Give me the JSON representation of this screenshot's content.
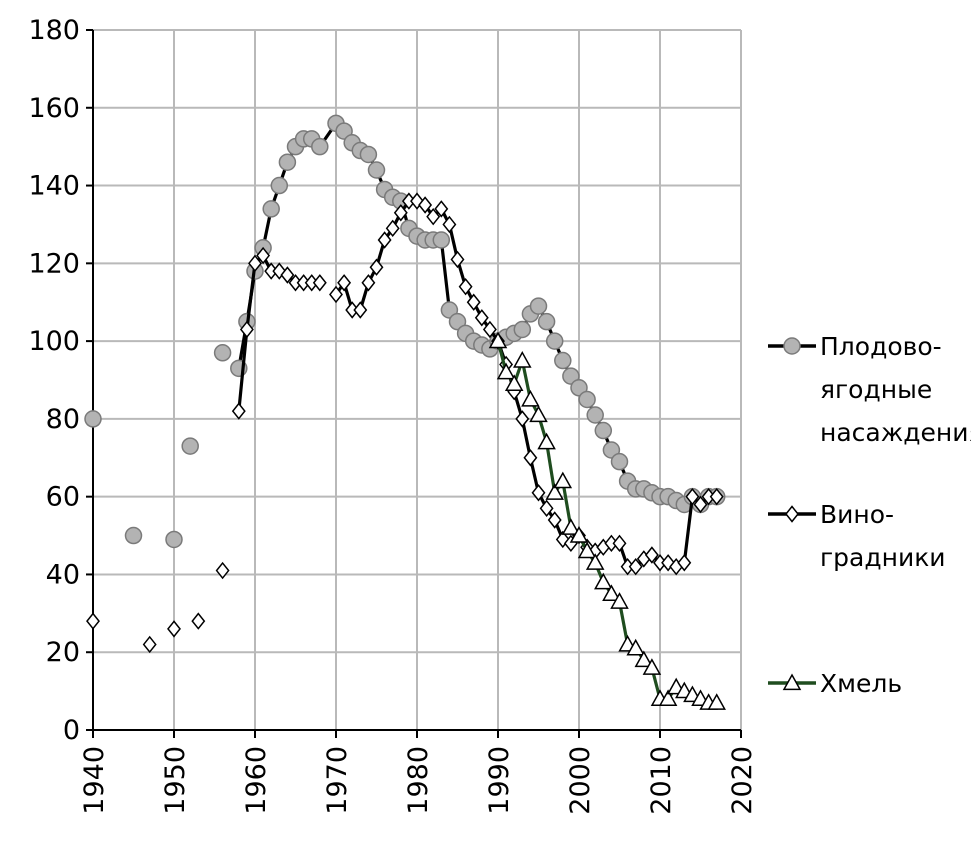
{
  "chart_data": {
    "type": "line",
    "title": "",
    "xlabel": "",
    "ylabel": "",
    "xlim": [
      1940,
      2020
    ],
    "ylim": [
      0,
      180
    ],
    "x_ticks": [
      "1940",
      "1950",
      "1960",
      "1970",
      "1980",
      "1990",
      "2000",
      "2010",
      "2020"
    ],
    "y_ticks": [
      "0",
      "20",
      "40",
      "60",
      "80",
      "100",
      "120",
      "140",
      "160",
      "180"
    ],
    "grid": true,
    "legend_position": "right",
    "series": [
      {
        "name": "Плодово-ягодные насаждения",
        "legend_lines": [
          "Плодово-",
          "ягодные",
          "насаждения"
        ],
        "marker": "circle",
        "line_color": "#000000",
        "marker_fill": "#b3b3b3",
        "points": [
          [
            1940,
            80
          ],
          [
            1945,
            50
          ],
          [
            1950,
            49
          ],
          [
            1952,
            73
          ],
          [
            1956,
            97
          ],
          [
            1958,
            93
          ],
          [
            1959,
            105
          ],
          [
            1960,
            118
          ],
          [
            1961,
            124
          ],
          [
            1962,
            134
          ],
          [
            1963,
            140
          ],
          [
            1964,
            146
          ],
          [
            1965,
            150
          ],
          [
            1966,
            152
          ],
          [
            1967,
            152
          ],
          [
            1968,
            150
          ],
          [
            1970,
            156
          ],
          [
            1971,
            154
          ],
          [
            1972,
            151
          ],
          [
            1973,
            149
          ],
          [
            1974,
            148
          ],
          [
            1975,
            144
          ],
          [
            1976,
            139
          ],
          [
            1977,
            137
          ],
          [
            1978,
            136
          ],
          [
            1979,
            129
          ],
          [
            1980,
            127
          ],
          [
            1981,
            126
          ],
          [
            1982,
            126
          ],
          [
            1983,
            126
          ],
          [
            1984,
            108
          ],
          [
            1985,
            105
          ],
          [
            1986,
            102
          ],
          [
            1987,
            100
          ],
          [
            1988,
            99
          ],
          [
            1989,
            98
          ],
          [
            1990,
            100
          ],
          [
            1991,
            101
          ],
          [
            1992,
            102
          ],
          [
            1993,
            103
          ],
          [
            1994,
            107
          ],
          [
            1995,
            109
          ],
          [
            1996,
            105
          ],
          [
            1997,
            100
          ],
          [
            1998,
            95
          ],
          [
            1999,
            91
          ],
          [
            2000,
            88
          ],
          [
            2001,
            85
          ],
          [
            2002,
            81
          ],
          [
            2003,
            77
          ],
          [
            2004,
            72
          ],
          [
            2005,
            69
          ],
          [
            2006,
            64
          ],
          [
            2007,
            62
          ],
          [
            2008,
            62
          ],
          [
            2009,
            61
          ],
          [
            2010,
            60
          ],
          [
            2011,
            60
          ],
          [
            2012,
            59
          ],
          [
            2013,
            58
          ],
          [
            2014,
            60
          ],
          [
            2015,
            58
          ],
          [
            2016,
            60
          ],
          [
            2017,
            60
          ]
        ],
        "segments": [
          [
            1958,
            2017
          ]
        ]
      },
      {
        "name": "Виноградники",
        "legend_lines": [
          "Вино-",
          "градники"
        ],
        "marker": "diamond",
        "line_color": "#000000",
        "marker_fill": "#ffffff",
        "points": [
          [
            1940,
            28
          ],
          [
            1947,
            22
          ],
          [
            1950,
            26
          ],
          [
            1953,
            28
          ],
          [
            1956,
            41
          ],
          [
            1958,
            82
          ],
          [
            1959,
            103
          ],
          [
            1960,
            120
          ],
          [
            1961,
            122
          ],
          [
            1962,
            118
          ],
          [
            1963,
            118
          ],
          [
            1964,
            117
          ],
          [
            1965,
            115
          ],
          [
            1966,
            115
          ],
          [
            1967,
            115
          ],
          [
            1968,
            115
          ],
          [
            1970,
            112
          ],
          [
            1971,
            115
          ],
          [
            1972,
            108
          ],
          [
            1973,
            108
          ],
          [
            1974,
            115
          ],
          [
            1975,
            119
          ],
          [
            1976,
            126
          ],
          [
            1977,
            129
          ],
          [
            1978,
            133
          ],
          [
            1979,
            136
          ],
          [
            1980,
            136
          ],
          [
            1981,
            135
          ],
          [
            1982,
            132
          ],
          [
            1983,
            134
          ],
          [
            1984,
            130
          ],
          [
            1985,
            121
          ],
          [
            1986,
            114
          ],
          [
            1987,
            110
          ],
          [
            1988,
            106
          ],
          [
            1989,
            103
          ],
          [
            1990,
            100
          ],
          [
            1991,
            94
          ],
          [
            1992,
            87
          ],
          [
            1993,
            80
          ],
          [
            1994,
            70
          ],
          [
            1995,
            61
          ],
          [
            1996,
            57
          ],
          [
            1997,
            54
          ],
          [
            1998,
            49
          ],
          [
            1999,
            48
          ],
          [
            2000,
            50
          ],
          [
            2001,
            47
          ],
          [
            2002,
            46
          ],
          [
            2003,
            47
          ],
          [
            2004,
            48
          ],
          [
            2005,
            48
          ],
          [
            2006,
            42
          ],
          [
            2007,
            42
          ],
          [
            2008,
            44
          ],
          [
            2009,
            45
          ],
          [
            2010,
            43
          ],
          [
            2011,
            43
          ],
          [
            2012,
            42
          ],
          [
            2013,
            43
          ],
          [
            2014,
            60
          ],
          [
            2015,
            58
          ],
          [
            2016,
            60
          ],
          [
            2017,
            60
          ]
        ],
        "segments": [
          [
            1958,
            1968
          ],
          [
            1970,
            2017
          ]
        ]
      },
      {
        "name": "Хмель",
        "legend_lines": [
          "Хмель"
        ],
        "marker": "triangle",
        "line_color": "#1f4d1f",
        "marker_fill": "#ffffff",
        "points": [
          [
            1990,
            100
          ],
          [
            1991,
            92
          ],
          [
            1992,
            89
          ],
          [
            1993,
            95
          ],
          [
            1994,
            85
          ],
          [
            1995,
            81
          ],
          [
            1996,
            74
          ],
          [
            1997,
            61
          ],
          [
            1998,
            64
          ],
          [
            1999,
            52
          ],
          [
            2000,
            50
          ],
          [
            2001,
            46
          ],
          [
            2002,
            43
          ],
          [
            2003,
            38
          ],
          [
            2004,
            35
          ],
          [
            2005,
            33
          ],
          [
            2006,
            22
          ],
          [
            2007,
            21
          ],
          [
            2008,
            18
          ],
          [
            2009,
            16
          ],
          [
            2010,
            8
          ],
          [
            2011,
            8
          ],
          [
            2012,
            11
          ],
          [
            2013,
            10
          ],
          [
            2014,
            9
          ],
          [
            2015,
            8
          ],
          [
            2016,
            7
          ],
          [
            2017,
            7
          ]
        ],
        "segments": [
          [
            1990,
            2017
          ]
        ]
      }
    ]
  }
}
